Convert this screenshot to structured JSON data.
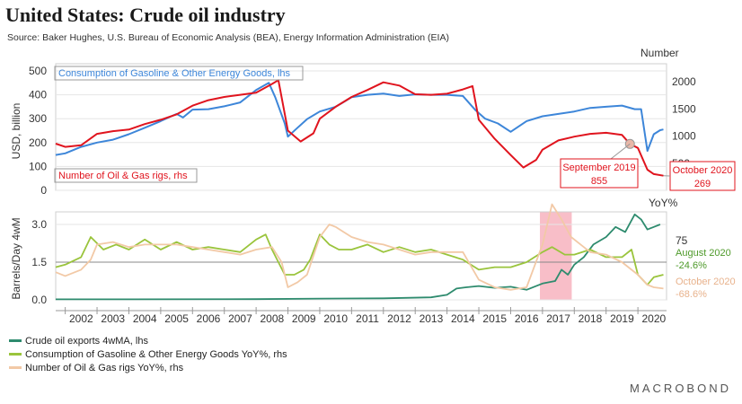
{
  "title": "United States: Crude oil industry",
  "source": "Source: Baker Hughes, U.S. Bureau of Economic Analysis (BEA), Energy Information Administration (EIA)",
  "logo": "MACROBOND",
  "legend": [
    {
      "label": "Crude oil exports 4wMA, lhs",
      "color": "#2e8b6e"
    },
    {
      "label": "Consumption of Gasoline & Other Energy Goods YoY%, rhs",
      "color": "#9ac43c"
    },
    {
      "label": "Number of Oil & Gas rigs YoY%, rhs",
      "color": "#f2c9a6"
    }
  ],
  "chart_data": [
    {
      "type": "line",
      "panel": "top",
      "ylabel": "USD, billion",
      "y2label": "Number",
      "ylim": [
        0,
        500
      ],
      "y2lim": [
        0,
        2200
      ],
      "yticks": [
        0,
        100,
        200,
        300,
        400,
        500
      ],
      "y2ticks": [
        500,
        1000,
        1500,
        2000
      ],
      "x_range": [
        2001.7,
        2020.9
      ],
      "series": [
        {
          "name": "Consumption of Gasoline & Other Energy Goods, lhs",
          "axis": "left",
          "color": "#3d86d9",
          "x": [
            2001.7,
            2002.0,
            2002.5,
            2003.0,
            2003.5,
            2004.0,
            2004.5,
            2005.0,
            2005.5,
            2005.7,
            2006.0,
            2006.5,
            2007.0,
            2007.5,
            2008.0,
            2008.4,
            2008.6,
            2008.9,
            2009.0,
            2009.3,
            2009.6,
            2010.0,
            2010.5,
            2011.0,
            2011.5,
            2012.0,
            2012.5,
            2013.0,
            2013.5,
            2014.0,
            2014.5,
            2014.9,
            2015.2,
            2015.6,
            2016.0,
            2016.5,
            2017.0,
            2017.5,
            2018.0,
            2018.5,
            2019.0,
            2019.5,
            2019.9,
            2020.1,
            2020.3,
            2020.5,
            2020.7,
            2020.8
          ],
          "values": [
            148,
            155,
            182,
            200,
            212,
            235,
            262,
            290,
            320,
            305,
            338,
            340,
            352,
            368,
            420,
            450,
            390,
            280,
            225,
            262,
            298,
            330,
            350,
            390,
            400,
            405,
            395,
            402,
            400,
            400,
            395,
            335,
            300,
            280,
            245,
            290,
            310,
            320,
            330,
            345,
            350,
            355,
            340,
            340,
            165,
            235,
            252,
            255
          ]
        },
        {
          "name": "Number of Oil & Gas rigs, rhs",
          "axis": "right",
          "color": "#e0141e",
          "x": [
            2001.7,
            2002.0,
            2002.5,
            2003.0,
            2003.5,
            2004.0,
            2004.5,
            2005.0,
            2005.5,
            2006.0,
            2006.5,
            2007.0,
            2007.5,
            2008.0,
            2008.5,
            2008.7,
            2009.0,
            2009.4,
            2009.8,
            2010.0,
            2010.5,
            2011.0,
            2011.5,
            2012.0,
            2012.5,
            2013.0,
            2013.5,
            2014.0,
            2014.5,
            2014.8,
            2015.0,
            2015.5,
            2016.0,
            2016.4,
            2016.8,
            2017.0,
            2017.5,
            2018.0,
            2018.5,
            2019.0,
            2019.5,
            2019.75,
            2020.0,
            2020.3,
            2020.5,
            2020.8
          ],
          "values": [
            860,
            800,
            830,
            1040,
            1090,
            1120,
            1220,
            1300,
            1400,
            1560,
            1660,
            1720,
            1760,
            1800,
            1960,
            2030,
            1100,
            900,
            1050,
            1320,
            1540,
            1720,
            1850,
            1990,
            1930,
            1770,
            1760,
            1780,
            1860,
            1920,
            1300,
            950,
            650,
            420,
            560,
            750,
            920,
            990,
            1040,
            1060,
            1020,
            855,
            780,
            380,
            300,
            269
          ]
        }
      ],
      "annotations": [
        {
          "label": "September 2019",
          "value": "855",
          "color": "#e0141e"
        },
        {
          "label": "October 2020",
          "value": "269",
          "color": "#e0141e"
        }
      ],
      "series_labels": [
        {
          "text": "Consumption of Gasoline & Other Energy Goods, lhs",
          "color": "#3d86d9"
        },
        {
          "text": "Number of Oil & Gas rigs, rhs",
          "color": "#e0141e"
        }
      ]
    },
    {
      "type": "line",
      "panel": "bottom",
      "ylabel": "Barrels/Day 4wM",
      "y2label": "YoY%",
      "ylim": [
        0,
        3.5
      ],
      "yticks": [
        0.0,
        1.5,
        3.0
      ],
      "ytick_labels": [
        "0.0",
        "1.5",
        "3.0"
      ],
      "y2tick_visible": [
        "75"
      ],
      "x_range": [
        2001.7,
        2020.9
      ],
      "xticks": [
        2002,
        2003,
        2004,
        2005,
        2006,
        2007,
        2008,
        2009,
        2010,
        2011,
        2012,
        2013,
        2014,
        2015,
        2016,
        2017,
        2018,
        2019,
        2020
      ],
      "shaded_region": [
        2016.92,
        2017.92
      ],
      "series": [
        {
          "name": "Crude oil exports 4wMA, lhs",
          "color": "#2e8b6e",
          "x": [
            2001.7,
            2004.0,
            2008.0,
            2010.0,
            2012.0,
            2013.5,
            2014.0,
            2014.3,
            2014.6,
            2015.0,
            2015.5,
            2016.0,
            2016.5,
            2017.0,
            2017.4,
            2017.6,
            2017.8,
            2018.0,
            2018.3,
            2018.6,
            2019.0,
            2019.3,
            2019.6,
            2019.9,
            2020.1,
            2020.3,
            2020.5,
            2020.7
          ],
          "values": [
            0.02,
            0.02,
            0.03,
            0.05,
            0.06,
            0.1,
            0.2,
            0.45,
            0.5,
            0.55,
            0.48,
            0.52,
            0.4,
            0.65,
            0.75,
            1.2,
            1.0,
            1.4,
            1.7,
            2.2,
            2.5,
            2.9,
            2.7,
            3.4,
            3.2,
            2.8,
            2.9,
            3.0
          ]
        },
        {
          "name": "Consumption of Gasoline & Other Energy Goods YoY%, rhs",
          "color": "#9ac43c",
          "x": [
            2001.7,
            2002.0,
            2002.5,
            2002.8,
            2003.2,
            2003.6,
            2004.0,
            2004.5,
            2005.0,
            2005.5,
            2006.0,
            2006.5,
            2007.0,
            2007.5,
            2008.0,
            2008.3,
            2008.5,
            2008.9,
            2009.2,
            2009.5,
            2009.7,
            2010.0,
            2010.3,
            2010.6,
            2011.0,
            2011.5,
            2012.0,
            2012.5,
            2013.0,
            2013.5,
            2014.0,
            2014.5,
            2015.0,
            2015.5,
            2016.0,
            2016.5,
            2017.0,
            2017.3,
            2017.7,
            2018.0,
            2018.5,
            2019.0,
            2019.5,
            2019.8,
            2020.0,
            2020.3,
            2020.5,
            2020.8
          ],
          "values": [
            1.3,
            1.4,
            1.7,
            2.5,
            2.0,
            2.2,
            2.0,
            2.4,
            2.0,
            2.3,
            2.0,
            2.1,
            2.0,
            1.9,
            2.4,
            2.6,
            2.0,
            1.0,
            1.0,
            1.2,
            1.6,
            2.6,
            2.2,
            2.0,
            2.0,
            2.2,
            1.9,
            2.1,
            1.9,
            2.0,
            1.8,
            1.6,
            1.2,
            1.3,
            1.3,
            1.5,
            1.9,
            2.1,
            1.8,
            1.8,
            2.0,
            1.7,
            1.7,
            2.0,
            1.0,
            0.6,
            0.9,
            1.0
          ]
        },
        {
          "name": "Number of Oil & Gas rigs YoY%, rhs",
          "color": "#f2c9a6",
          "x": [
            2001.7,
            2002.0,
            2002.5,
            2002.8,
            2003.0,
            2003.5,
            2004.0,
            2004.5,
            2005.0,
            2005.5,
            2006.0,
            2006.5,
            2007.0,
            2007.5,
            2008.0,
            2008.5,
            2008.8,
            2009.0,
            2009.3,
            2009.6,
            2010.0,
            2010.3,
            2010.5,
            2011.0,
            2011.5,
            2012.0,
            2012.5,
            2013.0,
            2013.5,
            2014.0,
            2014.5,
            2015.0,
            2015.5,
            2016.0,
            2016.5,
            2017.0,
            2017.3,
            2017.6,
            2017.9,
            2018.2,
            2018.5,
            2019.0,
            2019.5,
            2020.0,
            2020.3,
            2020.5,
            2020.8
          ],
          "values": [
            1.1,
            0.95,
            1.2,
            1.6,
            2.2,
            2.3,
            2.1,
            2.2,
            2.2,
            2.2,
            2.1,
            2.0,
            1.9,
            1.8,
            2.0,
            2.1,
            1.5,
            0.5,
            0.7,
            1.0,
            2.5,
            3.0,
            2.9,
            2.5,
            2.3,
            2.2,
            2.0,
            1.8,
            1.9,
            1.9,
            1.9,
            0.8,
            0.5,
            0.4,
            0.5,
            2.2,
            3.8,
            3.2,
            2.5,
            2.2,
            1.9,
            1.8,
            1.5,
            1.0,
            0.6,
            0.5,
            0.45
          ]
        }
      ],
      "annotations": [
        {
          "label": "August 2020",
          "value": "-24.6%",
          "color": "#9ac43c"
        },
        {
          "label": "October 2020",
          "value": "-68.6%",
          "color": "#f2c9a6"
        }
      ]
    }
  ]
}
